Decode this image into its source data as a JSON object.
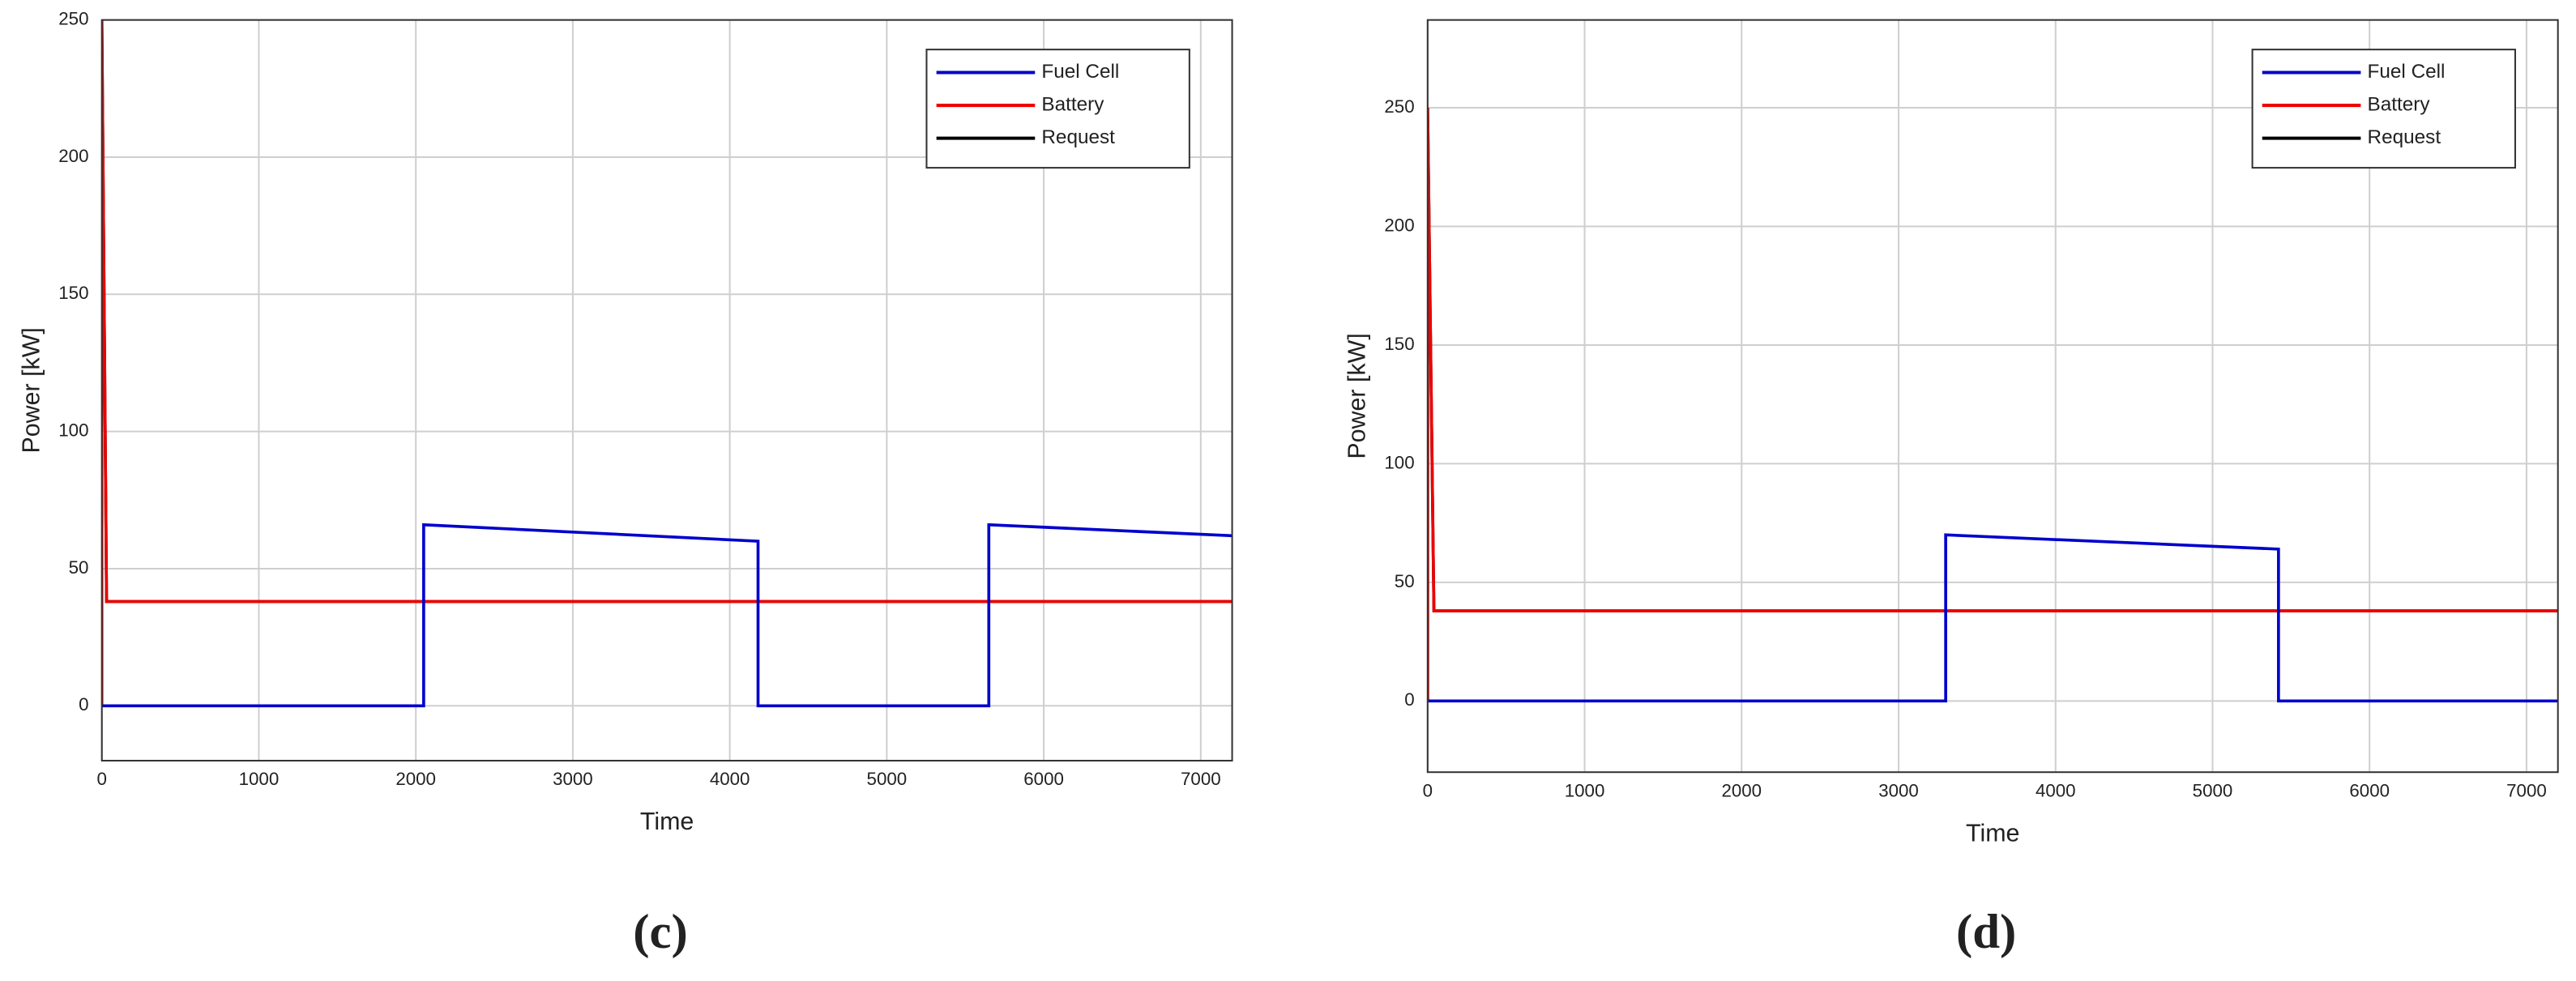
{
  "chart_data": [
    {
      "type": "line",
      "caption": "(c)",
      "xlabel": "Time",
      "ylabel": "Power [kW]",
      "xlim": [
        0,
        7200
      ],
      "ylim": [
        -20,
        250
      ],
      "xticks": [
        0,
        1000,
        2000,
        3000,
        4000,
        5000,
        6000,
        7000
      ],
      "yticks": [
        0,
        50,
        100,
        150,
        200,
        250
      ],
      "grid": true,
      "legend": "upper right",
      "series": [
        {
          "name": "Fuel Cell",
          "color": "#0000cc",
          "x": [
            0,
            2050,
            2050,
            4180,
            4180,
            5650,
            5650,
            7200
          ],
          "values": [
            0,
            0,
            66,
            60,
            0,
            0,
            66,
            62
          ]
        },
        {
          "name": "Battery",
          "color": "#ee0000",
          "x": [
            0,
            0,
            30,
            7200
          ],
          "values": [
            0,
            250,
            38,
            38
          ]
        },
        {
          "name": "Request",
          "color": "#000000",
          "x": [
            0,
            0,
            30,
            7200
          ],
          "values": [
            0,
            250,
            38,
            38
          ]
        }
      ]
    },
    {
      "type": "line",
      "caption": "(d)",
      "xlabel": "Time",
      "ylabel": "Power [kW]",
      "xlim": [
        0,
        7200
      ],
      "ylim": [
        -30,
        287
      ],
      "xticks": [
        0,
        1000,
        2000,
        3000,
        4000,
        5000,
        6000,
        7000
      ],
      "yticks": [
        0,
        50,
        100,
        150,
        200,
        250
      ],
      "grid": true,
      "legend": "upper right",
      "series": [
        {
          "name": "Fuel Cell",
          "color": "#0000cc",
          "x": [
            0,
            3300,
            3300,
            5420,
            5420,
            7200
          ],
          "values": [
            0,
            0,
            70,
            64,
            0,
            0
          ]
        },
        {
          "name": "Battery",
          "color": "#ee0000",
          "x": [
            0,
            0,
            40,
            7200
          ],
          "values": [
            0,
            250,
            38,
            38
          ]
        },
        {
          "name": "Request",
          "color": "#000000",
          "x": [
            0,
            0,
            40,
            7200
          ],
          "values": [
            0,
            250,
            38,
            38
          ]
        }
      ]
    }
  ]
}
